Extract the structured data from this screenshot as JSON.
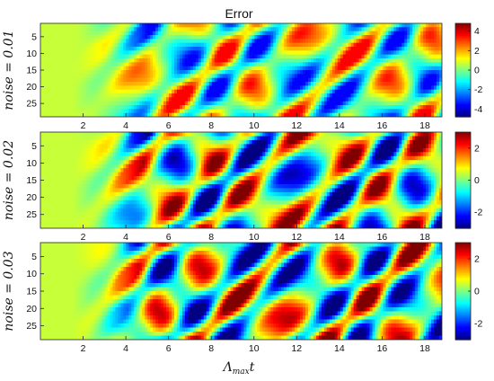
{
  "chart_data": [
    {
      "type": "heatmap",
      "title": "Error",
      "ylabel": "noise = 0.01",
      "x_ticks": [
        2,
        4,
        6,
        8,
        10,
        12,
        14,
        16,
        18
      ],
      "xlim": [
        0,
        18.8
      ],
      "y_ticks": [
        5,
        10,
        15,
        20,
        25
      ],
      "ylim": [
        1,
        29
      ],
      "colorbar": {
        "ticks": [
          -4,
          -2,
          0,
          2,
          4
        ],
        "range": [
          -4.8,
          4.8
        ],
        "colormap": "jet"
      },
      "grid": false
    },
    {
      "type": "heatmap",
      "ylabel": "noise = 0.02",
      "x_ticks": [
        2,
        4,
        6,
        8,
        10,
        12,
        14,
        16,
        18
      ],
      "xlim": [
        0,
        18.8
      ],
      "y_ticks": [
        5,
        10,
        15,
        20,
        25
      ],
      "ylim": [
        1,
        29
      ],
      "colorbar": {
        "ticks": [
          -2,
          0,
          2
        ],
        "range": [
          -3,
          3
        ],
        "colormap": "jet"
      },
      "grid": false
    },
    {
      "type": "heatmap",
      "ylabel": "noise = 0.03",
      "xlabel": "Λmax t",
      "x_ticks": [
        2,
        4,
        6,
        8,
        10,
        12,
        14,
        16,
        18
      ],
      "xlim": [
        0,
        18.8
      ],
      "y_ticks": [
        5,
        10,
        15,
        20,
        25
      ],
      "ylim": [
        1,
        29
      ],
      "colorbar": {
        "ticks": [
          -2,
          0,
          2
        ],
        "range": [
          -3,
          3
        ],
        "colormap": "jet"
      },
      "grid": false
    }
  ],
  "labels": {
    "title": "Error",
    "xlabel_main": "Λ",
    "xlabel_sub": "max",
    "xlabel_var": "t"
  },
  "colors": {
    "axis": "#222222",
    "jet_low": "#00008f",
    "jet_mid": "#7fff7f",
    "jet_high": "#800000"
  }
}
